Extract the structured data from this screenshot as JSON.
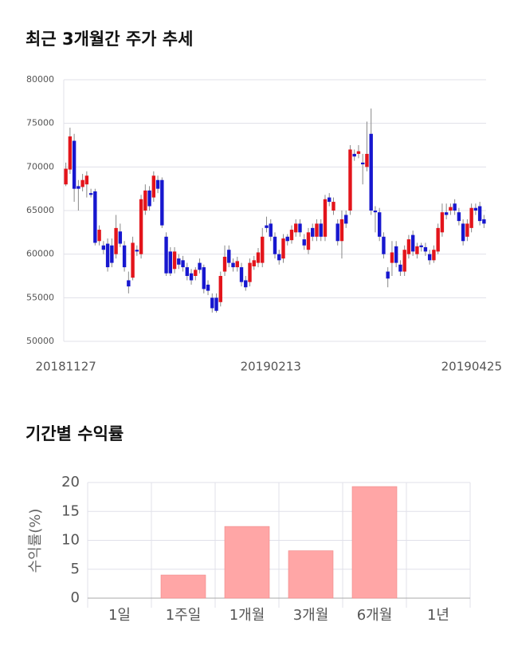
{
  "chart_data": [
    {
      "type": "candlestick",
      "title": "최근 3개월간 주가 추세",
      "categories": [
        "20181127",
        null,
        null,
        null,
        null,
        null,
        null,
        null,
        null,
        null,
        null,
        null,
        null,
        null,
        null,
        null,
        null,
        null,
        null,
        null,
        null,
        null,
        null,
        null,
        null,
        null,
        null,
        null,
        null,
        null,
        null,
        null,
        null,
        null,
        null,
        null,
        null,
        null,
        null,
        null,
        null,
        null,
        null,
        null,
        null,
        null,
        null,
        null,
        null,
        "20190213",
        null,
        null,
        null,
        null,
        null,
        null,
        null,
        null,
        null,
        null,
        null,
        null,
        null,
        null,
        null,
        null,
        null,
        null,
        null,
        null,
        null,
        null,
        null,
        null,
        null,
        null,
        null,
        null,
        null,
        null,
        null,
        null,
        null,
        null,
        null,
        null,
        null,
        null,
        null,
        null,
        null,
        null,
        null,
        null,
        null,
        null,
        null,
        null,
        null,
        null,
        "20190425"
      ],
      "open": [
        68000,
        69700,
        73000,
        67800,
        67700,
        68000,
        67000,
        67200,
        61500,
        61000,
        61200,
        61000,
        60000,
        62600,
        61000,
        57000,
        57300,
        60500,
        60000,
        65000,
        67300,
        66500,
        68500,
        68500,
        62000,
        60300,
        58300,
        59500,
        59300,
        58500,
        57800,
        57500,
        59000,
        58500,
        56500,
        55000,
        55000,
        54500,
        58000,
        60500,
        59000,
        58500,
        58500,
        57000,
        56800,
        58600,
        59000,
        59000,
        63300,
        63500,
        62000,
        60000,
        59500,
        62000,
        61600,
        62500,
        63500,
        61700,
        60500,
        63000,
        62000,
        63500,
        62000,
        66500,
        65000,
        63500,
        61500,
        64500,
        65000,
        71500,
        71500,
        70500,
        70000,
        73800,
        65000,
        64800,
        62000,
        58000,
        59000,
        60900,
        58800,
        58000,
        60000,
        62200,
        60000,
        61000,
        60800,
        60000,
        59300,
        60300,
        62500,
        64800,
        65000,
        65800,
        64800,
        63500,
        62000,
        63000,
        65300,
        65500,
        64000
      ],
      "high": [
        70500,
        74500,
        73800,
        68500,
        69200,
        69500,
        67500,
        67500,
        63300,
        61500,
        61800,
        61800,
        64500,
        63500,
        61500,
        58000,
        62000,
        61000,
        66800,
        68000,
        67800,
        69500,
        69000,
        68800,
        62500,
        60800,
        60800,
        60000,
        59800,
        59000,
        58300,
        58500,
        59500,
        58800,
        57000,
        55500,
        55500,
        58000,
        61000,
        61000,
        59500,
        59700,
        59000,
        57500,
        59500,
        59800,
        60700,
        63000,
        64300,
        64000,
        62500,
        60500,
        62300,
        62300,
        63300,
        64000,
        64000,
        62300,
        63000,
        63500,
        64000,
        64000,
        66800,
        67000,
        66500,
        64000,
        65000,
        65000,
        72500,
        72000,
        72500,
        71500,
        75200,
        76700,
        65500,
        65300,
        62500,
        58500,
        61500,
        61500,
        59300,
        61000,
        62200,
        62700,
        61300,
        61300,
        61300,
        60500,
        61000,
        63500,
        65800,
        65800,
        65800,
        66300,
        65300,
        64000,
        64000,
        65800,
        65800,
        66000,
        64500
      ],
      "low": [
        67800,
        69200,
        66000,
        65000,
        67200,
        66500,
        66500,
        61000,
        61000,
        60000,
        58000,
        58500,
        59500,
        60800,
        58000,
        55500,
        57000,
        59800,
        59500,
        64500,
        65000,
        66000,
        67000,
        63000,
        57500,
        57500,
        57800,
        58300,
        58000,
        57000,
        56500,
        57000,
        57800,
        55500,
        55300,
        53300,
        53300,
        54000,
        57500,
        58500,
        58000,
        58000,
        56300,
        55800,
        56300,
        58200,
        58500,
        58500,
        62500,
        61500,
        59500,
        58800,
        59000,
        61000,
        61200,
        62000,
        62000,
        60500,
        60000,
        61500,
        61500,
        61500,
        61500,
        65500,
        64500,
        61000,
        59500,
        63000,
        64500,
        70700,
        71000,
        68000,
        69500,
        64500,
        62500,
        61500,
        59500,
        56200,
        57500,
        58500,
        57500,
        57500,
        59500,
        59800,
        59500,
        60300,
        59800,
        58800,
        59000,
        60000,
        62000,
        64000,
        64500,
        64500,
        63300,
        61000,
        61500,
        62500,
        64500,
        63300,
        63000
      ],
      "close": [
        69800,
        73500,
        67500,
        67500,
        68500,
        69000,
        66800,
        61300,
        62800,
        60500,
        58500,
        59000,
        63000,
        61200,
        58500,
        56300,
        61300,
        60300,
        66300,
        67300,
        65500,
        69000,
        67500,
        63300,
        57800,
        57800,
        60300,
        58800,
        58500,
        57500,
        57000,
        58200,
        58200,
        56000,
        55800,
        53800,
        53500,
        57500,
        59700,
        59000,
        58500,
        59200,
        56800,
        56200,
        59000,
        59300,
        60200,
        62000,
        63000,
        62000,
        60000,
        59300,
        61800,
        61500,
        62800,
        63500,
        62500,
        61000,
        62500,
        62000,
        63500,
        62000,
        66300,
        66000,
        66000,
        61500,
        64000,
        63500,
        72000,
        71200,
        71800,
        70300,
        71500,
        65000,
        64800,
        62000,
        60000,
        57200,
        60200,
        59000,
        58000,
        60500,
        61700,
        60300,
        60900,
        60800,
        60300,
        59300,
        60500,
        63000,
        64800,
        64500,
        65400,
        65000,
        63800,
        61500,
        63500,
        65300,
        65000,
        63800,
        63500
      ],
      "up_color": "#e3141b",
      "down_color": "#1717cf",
      "ylim": [
        50000,
        80000
      ],
      "yticks": [
        50000,
        55000,
        60000,
        65000,
        70000,
        75000,
        80000
      ],
      "grid": true
    },
    {
      "type": "bar",
      "title": "기간별 수익률",
      "ylabel": "수익률(%)",
      "categories": [
        "1일",
        "1주일",
        "1개월",
        "3개월",
        "6개월",
        "1년"
      ],
      "values": [
        null,
        4,
        12.4,
        8.2,
        19.3,
        null
      ],
      "color": "#ffa6a6",
      "ylim": [
        0,
        20
      ],
      "yticks": [
        0,
        5,
        10,
        15,
        20
      ],
      "grid": true
    }
  ]
}
